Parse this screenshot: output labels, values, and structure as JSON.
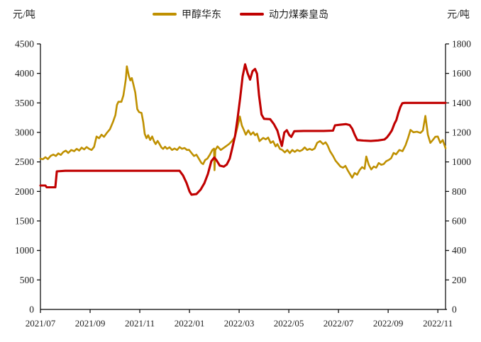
{
  "header": {
    "left_unit": "元/吨",
    "right_unit": "元/吨"
  },
  "legend": [
    {
      "label": "甲醇华东",
      "color": "#BF9000"
    },
    {
      "label": "动力煤秦皇岛",
      "color": "#C00000"
    }
  ],
  "chart_data": {
    "type": "line",
    "title": "",
    "left_axis": {
      "unit": "元/吨",
      "min": 0,
      "max": 4500,
      "step": 500,
      "tick_labels": [
        "0",
        "500",
        "1000",
        "1500",
        "2000",
        "2500",
        "3000",
        "3500",
        "4000",
        "4500"
      ]
    },
    "right_axis": {
      "unit": "元/吨",
      "min": 0,
      "max": 1800,
      "step": 200,
      "tick_labels": [
        "0",
        "200",
        "400",
        "600",
        "800",
        "1000",
        "1200",
        "1400",
        "1600",
        "1800"
      ]
    },
    "x_axis": {
      "tick_labels": [
        "2021/07",
        "2021/09",
        "2021/11",
        "2022/01",
        "2022/03",
        "2022/05",
        "2022/07",
        "2022/09",
        "2022/11"
      ],
      "months_per_tick": 2,
      "range_months": [
        0,
        16.31
      ]
    },
    "grid": false,
    "legend_position": "top-center",
    "series": [
      {
        "name": "甲醇华东",
        "axis": "left",
        "color": "#BF9000",
        "points": [
          [
            0.0,
            2555
          ],
          [
            0.1,
            2545
          ],
          [
            0.2,
            2580
          ],
          [
            0.3,
            2548
          ],
          [
            0.42,
            2605
          ],
          [
            0.52,
            2625
          ],
          [
            0.62,
            2600
          ],
          [
            0.72,
            2645
          ],
          [
            0.82,
            2618
          ],
          [
            0.92,
            2668
          ],
          [
            1.02,
            2692
          ],
          [
            1.12,
            2652
          ],
          [
            1.24,
            2702
          ],
          [
            1.36,
            2682
          ],
          [
            1.46,
            2722
          ],
          [
            1.56,
            2692
          ],
          [
            1.66,
            2742
          ],
          [
            1.76,
            2712
          ],
          [
            1.86,
            2752
          ],
          [
            1.96,
            2722
          ],
          [
            2.06,
            2702
          ],
          [
            2.16,
            2755
          ],
          [
            2.26,
            2930
          ],
          [
            2.36,
            2902
          ],
          [
            2.46,
            2962
          ],
          [
            2.56,
            2925
          ],
          [
            2.68,
            2995
          ],
          [
            2.8,
            3055
          ],
          [
            2.92,
            3175
          ],
          [
            3.02,
            3295
          ],
          [
            3.08,
            3465
          ],
          [
            3.14,
            3520
          ],
          [
            3.26,
            3518
          ],
          [
            3.34,
            3625
          ],
          [
            3.4,
            3790
          ],
          [
            3.44,
            3905
          ],
          [
            3.48,
            4120
          ],
          [
            3.56,
            3958
          ],
          [
            3.62,
            3882
          ],
          [
            3.68,
            3922
          ],
          [
            3.74,
            3820
          ],
          [
            3.82,
            3675
          ],
          [
            3.9,
            3395
          ],
          [
            3.97,
            3345
          ],
          [
            4.07,
            3330
          ],
          [
            4.14,
            3175
          ],
          [
            4.2,
            2975
          ],
          [
            4.27,
            2902
          ],
          [
            4.34,
            2952
          ],
          [
            4.42,
            2872
          ],
          [
            4.5,
            2932
          ],
          [
            4.57,
            2852
          ],
          [
            4.64,
            2802
          ],
          [
            4.72,
            2856
          ],
          [
            4.8,
            2800
          ],
          [
            4.87,
            2746
          ],
          [
            4.94,
            2722
          ],
          [
            5.02,
            2758
          ],
          [
            5.1,
            2722
          ],
          [
            5.2,
            2748
          ],
          [
            5.3,
            2702
          ],
          [
            5.4,
            2728
          ],
          [
            5.5,
            2702
          ],
          [
            5.6,
            2752
          ],
          [
            5.7,
            2722
          ],
          [
            5.8,
            2736
          ],
          [
            5.9,
            2702
          ],
          [
            5.98,
            2705
          ],
          [
            6.08,
            2652
          ],
          [
            6.18,
            2600
          ],
          [
            6.28,
            2622
          ],
          [
            6.38,
            2552
          ],
          [
            6.48,
            2482
          ],
          [
            6.55,
            2462
          ],
          [
            6.63,
            2532
          ],
          [
            6.72,
            2556
          ],
          [
            6.82,
            2622
          ],
          [
            6.92,
            2702
          ],
          [
            6.99,
            2725
          ],
          [
            7.01,
            2360
          ],
          [
            7.04,
            2702
          ],
          [
            7.13,
            2762
          ],
          [
            7.26,
            2702
          ],
          [
            7.36,
            2732
          ],
          [
            7.46,
            2762
          ],
          [
            7.59,
            2802
          ],
          [
            7.71,
            2852
          ],
          [
            7.83,
            2922
          ],
          [
            7.93,
            3085
          ],
          [
            8.03,
            3270
          ],
          [
            8.11,
            3118
          ],
          [
            8.19,
            3042
          ],
          [
            8.27,
            2962
          ],
          [
            8.37,
            3035
          ],
          [
            8.47,
            2962
          ],
          [
            8.57,
            3002
          ],
          [
            8.64,
            2952
          ],
          [
            8.72,
            2980
          ],
          [
            8.82,
            2852
          ],
          [
            8.9,
            2882
          ],
          [
            8.97,
            2906
          ],
          [
            9.07,
            2882
          ],
          [
            9.17,
            2912
          ],
          [
            9.27,
            2822
          ],
          [
            9.37,
            2850
          ],
          [
            9.47,
            2762
          ],
          [
            9.54,
            2802
          ],
          [
            9.64,
            2722
          ],
          [
            9.74,
            2702
          ],
          [
            9.84,
            2662
          ],
          [
            9.94,
            2702
          ],
          [
            10.04,
            2650
          ],
          [
            10.14,
            2702
          ],
          [
            10.24,
            2670
          ],
          [
            10.34,
            2702
          ],
          [
            10.44,
            2682
          ],
          [
            10.54,
            2702
          ],
          [
            10.64,
            2746
          ],
          [
            10.74,
            2702
          ],
          [
            10.84,
            2722
          ],
          [
            10.94,
            2702
          ],
          [
            11.04,
            2726
          ],
          [
            11.14,
            2822
          ],
          [
            11.26,
            2852
          ],
          [
            11.38,
            2802
          ],
          [
            11.48,
            2832
          ],
          [
            11.56,
            2782
          ],
          [
            11.66,
            2682
          ],
          [
            11.78,
            2602
          ],
          [
            11.88,
            2522
          ],
          [
            11.98,
            2472
          ],
          [
            12.08,
            2422
          ],
          [
            12.18,
            2402
          ],
          [
            12.28,
            2432
          ],
          [
            12.38,
            2352
          ],
          [
            12.48,
            2282
          ],
          [
            12.55,
            2232
          ],
          [
            12.65,
            2312
          ],
          [
            12.75,
            2282
          ],
          [
            12.85,
            2362
          ],
          [
            12.95,
            2412
          ],
          [
            13.05,
            2382
          ],
          [
            13.12,
            2592
          ],
          [
            13.22,
            2452
          ],
          [
            13.32,
            2372
          ],
          [
            13.42,
            2422
          ],
          [
            13.52,
            2402
          ],
          [
            13.62,
            2482
          ],
          [
            13.72,
            2452
          ],
          [
            13.82,
            2462
          ],
          [
            13.92,
            2512
          ],
          [
            14.02,
            2532
          ],
          [
            14.12,
            2562
          ],
          [
            14.22,
            2652
          ],
          [
            14.32,
            2628
          ],
          [
            14.45,
            2702
          ],
          [
            14.58,
            2682
          ],
          [
            14.7,
            2782
          ],
          [
            14.8,
            2902
          ],
          [
            14.9,
            3042
          ],
          [
            15.02,
            3002
          ],
          [
            15.16,
            3012
          ],
          [
            15.3,
            2992
          ],
          [
            15.4,
            3032
          ],
          [
            15.5,
            3280
          ],
          [
            15.6,
            2962
          ],
          [
            15.7,
            2822
          ],
          [
            15.8,
            2872
          ],
          [
            15.9,
            2926
          ],
          [
            16.0,
            2930
          ],
          [
            16.1,
            2822
          ],
          [
            16.2,
            2872
          ],
          [
            16.31,
            2732
          ]
        ]
      },
      {
        "name": "动力煤秦皇岛",
        "axis": "right",
        "color": "#C00000",
        "points": [
          [
            0.0,
            840
          ],
          [
            0.2,
            840
          ],
          [
            0.25,
            828
          ],
          [
            0.6,
            828
          ],
          [
            0.66,
            936
          ],
          [
            1.0,
            940
          ],
          [
            2.0,
            940
          ],
          [
            3.0,
            940
          ],
          [
            4.0,
            940
          ],
          [
            5.0,
            940
          ],
          [
            5.6,
            940
          ],
          [
            5.74,
            908
          ],
          [
            5.88,
            858
          ],
          [
            6.0,
            800
          ],
          [
            6.08,
            778
          ],
          [
            6.28,
            782
          ],
          [
            6.45,
            812
          ],
          [
            6.6,
            856
          ],
          [
            6.74,
            918
          ],
          [
            6.88,
            1005
          ],
          [
            7.0,
            1030
          ],
          [
            7.1,
            1008
          ],
          [
            7.22,
            975
          ],
          [
            7.38,
            968
          ],
          [
            7.5,
            982
          ],
          [
            7.62,
            1022
          ],
          [
            7.72,
            1092
          ],
          [
            7.84,
            1180
          ],
          [
            7.94,
            1300
          ],
          [
            8.04,
            1432
          ],
          [
            8.14,
            1580
          ],
          [
            8.24,
            1662
          ],
          [
            8.34,
            1602
          ],
          [
            8.44,
            1558
          ],
          [
            8.54,
            1615
          ],
          [
            8.64,
            1630
          ],
          [
            8.72,
            1598
          ],
          [
            8.8,
            1452
          ],
          [
            8.9,
            1322
          ],
          [
            9.0,
            1292
          ],
          [
            9.25,
            1290
          ],
          [
            9.4,
            1256
          ],
          [
            9.54,
            1212
          ],
          [
            9.64,
            1152
          ],
          [
            9.72,
            1108
          ],
          [
            9.82,
            1200
          ],
          [
            9.92,
            1215
          ],
          [
            10.02,
            1182
          ],
          [
            10.1,
            1170
          ],
          [
            10.22,
            1208
          ],
          [
            10.6,
            1210
          ],
          [
            11.0,
            1210
          ],
          [
            11.4,
            1210
          ],
          [
            11.78,
            1212
          ],
          [
            11.86,
            1248
          ],
          [
            12.05,
            1252
          ],
          [
            12.3,
            1256
          ],
          [
            12.45,
            1250
          ],
          [
            12.55,
            1226
          ],
          [
            12.66,
            1182
          ],
          [
            12.76,
            1148
          ],
          [
            13.0,
            1145
          ],
          [
            13.3,
            1142
          ],
          [
            13.6,
            1146
          ],
          [
            13.85,
            1152
          ],
          [
            13.95,
            1166
          ],
          [
            14.05,
            1188
          ],
          [
            14.15,
            1214
          ],
          [
            14.25,
            1258
          ],
          [
            14.33,
            1284
          ],
          [
            14.41,
            1332
          ],
          [
            14.49,
            1372
          ],
          [
            14.57,
            1398
          ],
          [
            14.66,
            1400
          ],
          [
            15.0,
            1400
          ],
          [
            15.6,
            1400
          ],
          [
            16.31,
            1400
          ]
        ]
      }
    ]
  }
}
